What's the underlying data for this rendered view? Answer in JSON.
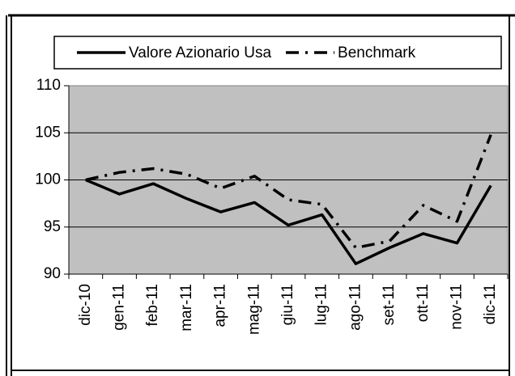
{
  "chart_data": {
    "type": "line",
    "categories": [
      "dic-10",
      "gen-11",
      "feb-11",
      "mar-11",
      "apr-11",
      "mag-11",
      "giu-11",
      "lug-11",
      "ago-11",
      "set-11",
      "ott-11",
      "nov-11",
      "dic-11"
    ],
    "series": [
      {
        "name": "Valore Azionario Usa",
        "color": "#000000",
        "linestyle": "solid",
        "values": [
          100,
          98.5,
          99.6,
          98.0,
          96.6,
          97.6,
          95.2,
          96.3,
          91.1,
          92.8,
          94.3,
          93.3,
          99.4
        ]
      },
      {
        "name": "Benchmark",
        "color": "#000000",
        "linestyle": "dashdot",
        "values": [
          100,
          100.8,
          101.2,
          100.6,
          99.1,
          100.4,
          97.9,
          97.4,
          92.8,
          93.5,
          97.3,
          95.6,
          104.8
        ]
      }
    ],
    "ylim": [
      90,
      110
    ],
    "yticks": [
      90,
      95,
      100,
      105,
      110
    ],
    "grid": true,
    "legend": "top"
  }
}
